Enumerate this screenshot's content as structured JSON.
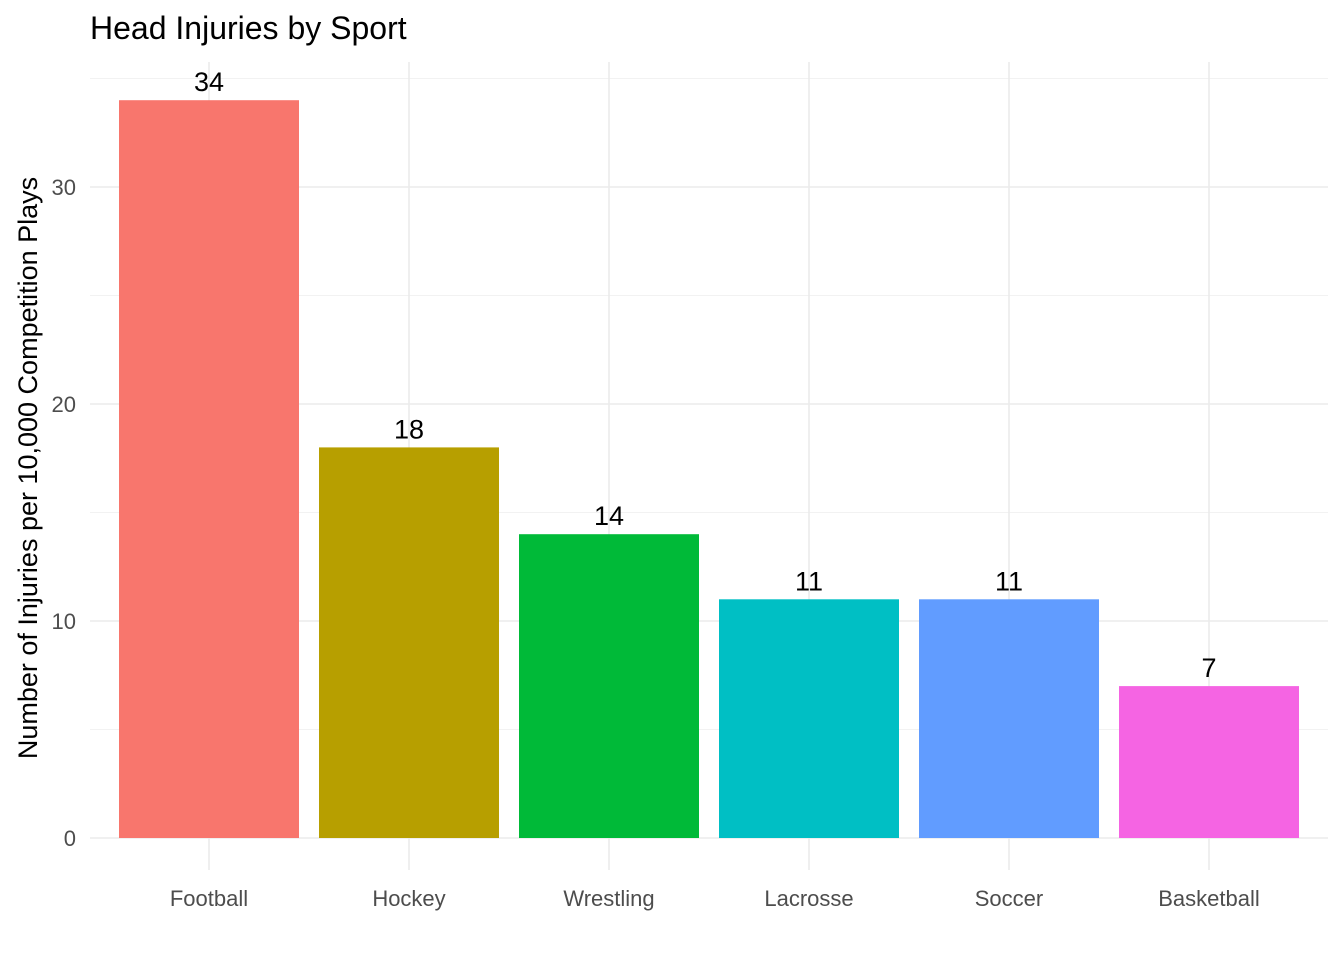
{
  "chart_data": {
    "type": "bar",
    "title": "Head Injuries by Sport",
    "xlabel": "",
    "ylabel": "Number of Injuries per 10,000 Competition Plays",
    "categories": [
      "Football",
      "Hockey",
      "Wrestling",
      "Lacrosse",
      "Soccer",
      "Basketball"
    ],
    "values": [
      34,
      18,
      14,
      11,
      11,
      7
    ],
    "data_labels": [
      "34",
      "18",
      "14",
      "11",
      "11",
      "7"
    ],
    "colors": [
      "#F8766D",
      "#B79F00",
      "#00BA38",
      "#00BFC4",
      "#619CFF",
      "#F564E3"
    ],
    "ylim": [
      0,
      35.7
    ],
    "yticks": [
      0,
      10,
      20,
      30
    ],
    "ytick_labels": [
      "0",
      "10",
      "20",
      "30"
    ],
    "grid": true,
    "legend": "none"
  }
}
